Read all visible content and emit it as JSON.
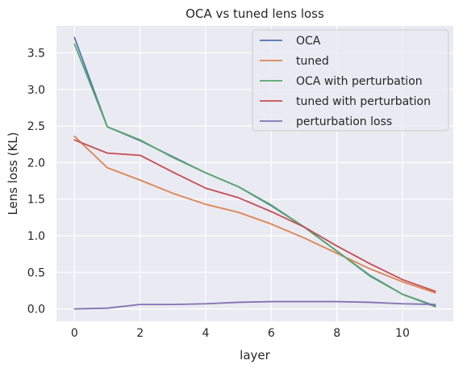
{
  "chart_data": {
    "type": "line",
    "title": "OCA vs tuned lens loss",
    "xlabel": "layer",
    "ylabel": "Lens loss (KL)",
    "xlim": [
      -0.55,
      11.55
    ],
    "ylim": [
      -0.17,
      3.87
    ],
    "xticks": [
      0,
      2,
      4,
      6,
      8,
      10
    ],
    "xtick_labels": [
      "0",
      "2",
      "4",
      "6",
      "8",
      "10"
    ],
    "yticks": [
      0.0,
      0.5,
      1.0,
      1.5,
      2.0,
      2.5,
      3.0,
      3.5
    ],
    "ytick_labels": [
      "0.0",
      "0.5",
      "1.0",
      "1.5",
      "2.0",
      "2.5",
      "3.0",
      "3.5"
    ],
    "grid": true,
    "legend_position": "upper-right",
    "x": [
      0,
      1,
      2,
      3,
      4,
      5,
      6,
      7,
      8,
      9,
      10,
      11
    ],
    "series": [
      {
        "name": "OCA",
        "color": "#4c72b0",
        "values": [
          3.71,
          2.49,
          2.3,
          2.08,
          1.86,
          1.67,
          1.41,
          1.12,
          0.79,
          0.46,
          0.2,
          0.04
        ]
      },
      {
        "name": "tuned",
        "color": "#dd8452",
        "values": [
          2.36,
          1.93,
          1.76,
          1.58,
          1.43,
          1.32,
          1.16,
          0.97,
          0.76,
          0.55,
          0.37,
          0.22
        ]
      },
      {
        "name": "OCA with perturbation",
        "color": "#55a868",
        "values": [
          3.62,
          2.49,
          2.31,
          2.07,
          1.86,
          1.67,
          1.42,
          1.12,
          0.79,
          0.45,
          0.2,
          0.03
        ]
      },
      {
        "name": "tuned with perturbation",
        "color": "#c44e52",
        "values": [
          2.31,
          2.13,
          2.1,
          1.87,
          1.65,
          1.52,
          1.33,
          1.12,
          0.86,
          0.62,
          0.4,
          0.24
        ]
      },
      {
        "name": "perturbation loss",
        "color": "#8172b3",
        "values": [
          0.0,
          0.01,
          0.06,
          0.06,
          0.07,
          0.09,
          0.1,
          0.1,
          0.1,
          0.09,
          0.07,
          0.06
        ]
      }
    ]
  }
}
